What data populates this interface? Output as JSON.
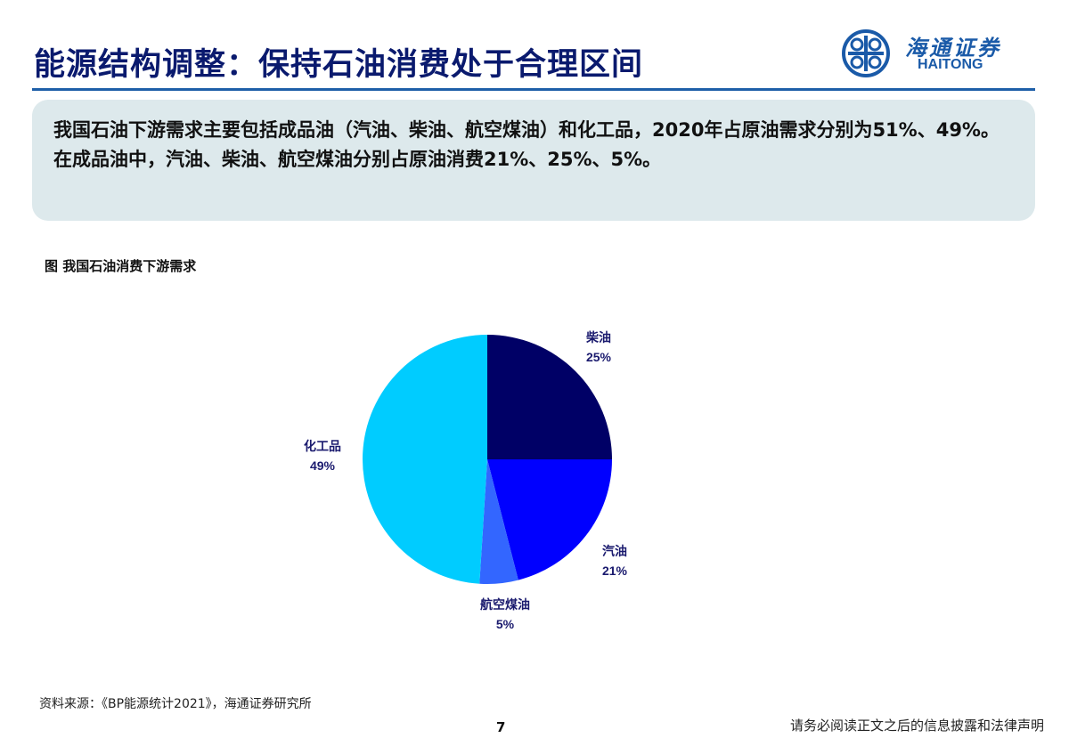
{
  "header": {
    "title": "能源结构调整：保持石油消费处于合理区间",
    "logo_cn": "海通证券",
    "logo_en": "HAITONG"
  },
  "summary": "我国石油下游需求主要包括成品油（汽油、柴油、航空煤油）和化工品，2020年占原油需求分别为51%、49%。在成品油中，汽油、柴油、航空煤油分别占原油消费21%、25%、5%。",
  "caption": "图 我国石油消费下游需求",
  "chart_data": {
    "type": "pie",
    "title": "",
    "start": "12 o'clock, clockwise",
    "slices": [
      {
        "name": "柴油",
        "value": 25,
        "label": "25%",
        "color": "#000066"
      },
      {
        "name": "汽油",
        "value": 21,
        "label": "21%",
        "color": "#0000ff"
      },
      {
        "name": "航空煤油",
        "value": 5,
        "label": "5%",
        "color": "#3366ff"
      },
      {
        "name": "化工品",
        "value": 49,
        "label": "49%",
        "color": "#00ccff"
      }
    ]
  },
  "footer": {
    "source": "资料来源：《BP能源统计2021》，海通证券研究所",
    "page": "7",
    "disclaimer": "请务必阅读正文之后的信息披露和法律声明"
  }
}
